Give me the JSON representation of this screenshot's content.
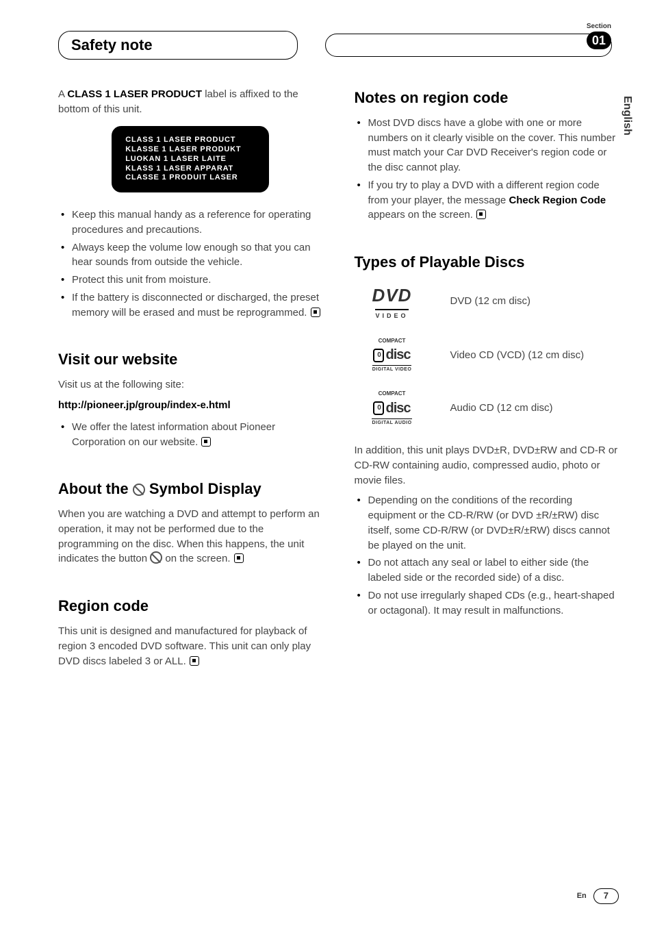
{
  "header": {
    "title": "Safety note",
    "section_label": "Section",
    "section_number": "01"
  },
  "language_tab": "English",
  "left": {
    "intro_prefix": "A ",
    "intro_bold": "CLASS 1 LASER PRODUCT",
    "intro_suffix": " label is affixed to the bottom of this unit.",
    "label_lines": [
      "CLASS 1  LASER  PRODUCT",
      "KLASSE 1  LASER  PRODUKT",
      "LUOKAN 1  LASER  LAITE",
      "KLASS 1  LASER  APPARAT",
      "CLASSE 1  PRODUIT  LASER"
    ],
    "bullets1": [
      "Keep this manual handy as a reference for operating procedures and precautions.",
      "Always keep the volume low enough so that you can hear sounds from outside the vehicle.",
      "Protect this unit from moisture.",
      "If the battery is disconnected or discharged, the preset memory will be erased and must be reprogrammed."
    ],
    "visit_heading": "Visit our website",
    "visit_intro": "Visit us at the following site:",
    "visit_url": "http://pioneer.jp/group/index-e.html",
    "visit_bullets": [
      "We offer the latest information about Pioneer Corporation on our website."
    ],
    "about_heading_pre": "About the ",
    "about_heading_post": " Symbol Display",
    "about_para_pre": "When you are watching a DVD and attempt to perform an operation, it may not be performed due to the programming on the disc. When this happens, the unit indicates the button ",
    "about_para_post": " on the screen.",
    "region_heading": "Region code",
    "region_para": "This unit is designed and manufactured for playback of region 3 encoded DVD software. This unit can only play DVD discs labeled 3 or ALL."
  },
  "right": {
    "notes_heading": "Notes on region code",
    "notes_bullets_1": "Most DVD discs have a globe with one or more numbers on it clearly visible on the cover. This number must match your Car DVD Receiver's region code or the disc cannot play.",
    "notes_bullets_2_pre": "If you try to play a DVD with a different region code from your player, the message ",
    "notes_bullets_2_bold": "Check Region Code",
    "notes_bullets_2_post": " appears on the screen.",
    "types_heading": "Types of Playable Discs",
    "discs": [
      {
        "desc": "DVD (12 cm disc)"
      },
      {
        "desc": "Video CD (VCD) (12 cm disc)"
      },
      {
        "desc": "Audio CD (12 cm disc)"
      }
    ],
    "dvd_logo": {
      "main": "DVD",
      "sub": "VIDEO"
    },
    "cd_logo": {
      "top": "COMPACT",
      "bot_video": "DIGITAL VIDEO",
      "bot_audio": "DIGITAL AUDIO"
    },
    "addendum": "In addition, this unit plays DVD±R, DVD±RW and CD-R or CD-RW containing audio, compressed audio, photo or movie files.",
    "addendum_bullets": [
      "Depending on the conditions of the recording equipment or the CD-R/RW (or DVD ±R/±RW) disc itself, some CD-R/RW (or DVD±R/±RW) discs cannot be played on the unit.",
      "Do not attach any seal or label to either side (the labeled side or the recorded side) of a disc.",
      "Do not use irregularly shaped CDs (e.g., heart-shaped or octagonal). It may result in malfunctions."
    ]
  },
  "footer": {
    "lang": "En",
    "page": "7"
  }
}
